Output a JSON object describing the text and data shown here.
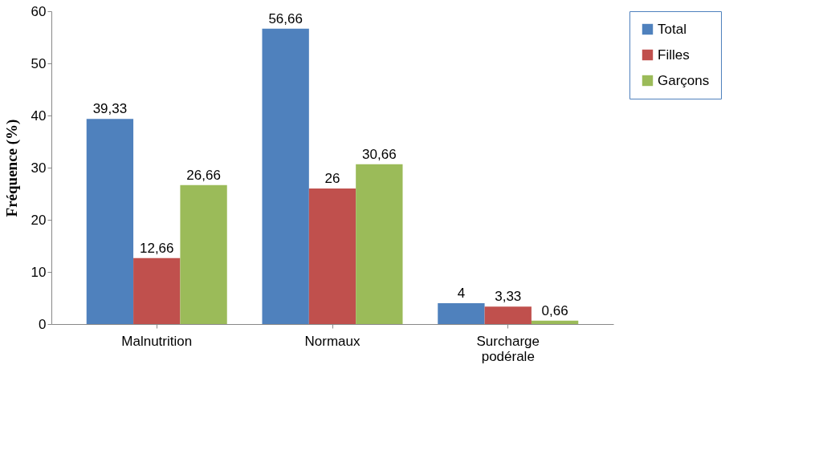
{
  "chart_data": {
    "type": "bar",
    "ylabel": "Fréquence (%)",
    "categories": [
      "Malnutrition",
      "Normaux",
      "Surcharge podérale"
    ],
    "series": [
      {
        "name": "Total",
        "color": "#4f81bd",
        "values": [
          39.33,
          56.66,
          4
        ],
        "value_labels": [
          "39,33",
          "56,66",
          "4"
        ]
      },
      {
        "name": "Filles",
        "color": "#c0504d",
        "values": [
          12.66,
          26,
          3.33
        ],
        "value_labels": [
          "12,66",
          "26",
          "3,33"
        ]
      },
      {
        "name": "Garçons",
        "color": "#9bbb59",
        "values": [
          26.66,
          30.66,
          0.66
        ],
        "value_labels": [
          "26,66",
          "30,66",
          "0,66"
        ]
      }
    ],
    "ylim": [
      0,
      60
    ],
    "yticks": [
      0,
      10,
      20,
      30,
      40,
      50,
      60
    ],
    "grid": false,
    "legend": "right"
  }
}
